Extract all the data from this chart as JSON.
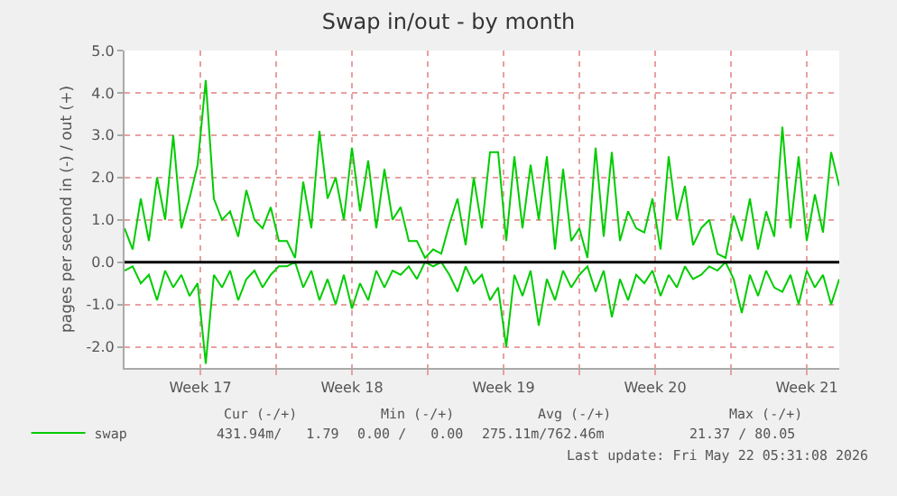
{
  "chart_data": {
    "type": "line",
    "title": "Swap in/out - by month",
    "ylabel": "pages per second in (-) / out (+)",
    "x": [
      "2026-04-20T00:00",
      "2026-04-20T09:00",
      "2026-04-20T18:00",
      "2026-04-21T03:00",
      "2026-04-21T12:00",
      "2026-04-21T21:00",
      "2026-04-22T06:00",
      "2026-04-22T15:00",
      "2026-04-23T00:00",
      "2026-04-23T09:00",
      "2026-04-23T18:00",
      "2026-04-24T03:00",
      "2026-04-24T12:00",
      "2026-04-24T21:00",
      "2026-04-25T06:00",
      "2026-04-25T15:00",
      "2026-04-26T00:00",
      "2026-04-26T09:00",
      "2026-04-26T18:00",
      "2026-04-27T03:00",
      "2026-04-27T12:00",
      "2026-04-27T21:00",
      "2026-04-28T06:00",
      "2026-04-28T15:00",
      "2026-04-29T00:00",
      "2026-04-29T09:00",
      "2026-04-29T18:00",
      "2026-04-30T03:00",
      "2026-04-30T12:00",
      "2026-04-30T21:00",
      "2026-05-01T06:00",
      "2026-05-01T15:00",
      "2026-05-02T00:00",
      "2026-05-02T09:00",
      "2026-05-02T18:00",
      "2026-05-03T03:00",
      "2026-05-03T12:00",
      "2026-05-03T21:00",
      "2026-05-04T06:00",
      "2026-05-04T15:00",
      "2026-05-05T00:00",
      "2026-05-05T09:00",
      "2026-05-05T18:00",
      "2026-05-06T03:00",
      "2026-05-06T12:00",
      "2026-05-06T21:00",
      "2026-05-07T06:00",
      "2026-05-07T15:00",
      "2026-05-08T00:00",
      "2026-05-08T09:00",
      "2026-05-08T18:00",
      "2026-05-09T03:00",
      "2026-05-09T12:00",
      "2026-05-09T21:00",
      "2026-05-10T06:00",
      "2026-05-10T15:00",
      "2026-05-11T00:00",
      "2026-05-11T09:00",
      "2026-05-11T18:00",
      "2026-05-12T03:00",
      "2026-05-12T12:00",
      "2026-05-12T21:00",
      "2026-05-13T06:00",
      "2026-05-13T15:00",
      "2026-05-14T00:00",
      "2026-05-14T09:00",
      "2026-05-14T18:00",
      "2026-05-15T03:00",
      "2026-05-15T12:00",
      "2026-05-15T21:00",
      "2026-05-16T06:00",
      "2026-05-16T15:00",
      "2026-05-17T00:00",
      "2026-05-17T09:00",
      "2026-05-17T18:00",
      "2026-05-18T03:00",
      "2026-05-18T12:00",
      "2026-05-18T21:00",
      "2026-05-19T06:00",
      "2026-05-19T15:00",
      "2026-05-20T00:00",
      "2026-05-20T09:00",
      "2026-05-20T18:00",
      "2026-05-21T03:00",
      "2026-05-21T12:00",
      "2026-05-21T21:00",
      "2026-05-22T06:00",
      "2026-05-22T15:00",
      "2026-05-23T00:00"
    ],
    "series": [
      {
        "name": "swap",
        "color": "#00cc00",
        "values": [
          -0.2,
          -0.1,
          -0.5,
          -0.3,
          -0.9,
          -0.2,
          -0.6,
          -0.3,
          -0.8,
          -0.5,
          -2.4,
          -0.3,
          -0.6,
          -0.2,
          -0.9,
          -0.4,
          -0.2,
          -0.6,
          -0.3,
          -0.1,
          -0.1,
          0,
          -0.6,
          -0.2,
          -0.9,
          -0.4,
          -1.0,
          -0.3,
          -1.1,
          -0.5,
          -0.9,
          -0.2,
          -0.6,
          -0.2,
          -0.3,
          -0.1,
          -0.4,
          0,
          -0.1,
          0,
          -0.3,
          -0.7,
          -0.1,
          -0.5,
          -0.3,
          -0.9,
          -0.6,
          -2.0,
          -0.3,
          -0.8,
          -0.2,
          -1.5,
          -0.4,
          -0.9,
          -0.2,
          -0.6,
          -0.3,
          -0.1,
          -0.7,
          -0.2,
          -1.3,
          -0.4,
          -0.9,
          -0.3,
          -0.5,
          -0.2,
          -0.8,
          -0.3,
          -0.6,
          -0.1,
          -0.4,
          -0.3,
          -0.1,
          -0.2,
          0,
          -0.4,
          -1.2,
          -0.3,
          -0.8,
          -0.2,
          -0.6,
          -0.7,
          -0.3,
          -1.0,
          -0.2,
          -0.6,
          -0.3,
          -1.0,
          -0.4
        ]
      },
      {
        "color": "#00cc00",
        "values": [
          0.8,
          0.3,
          1.5,
          0.5,
          2.0,
          1.0,
          3.0,
          0.8,
          1.5,
          2.3,
          4.3,
          1.5,
          1.0,
          1.2,
          0.6,
          1.7,
          1.0,
          0.8,
          1.3,
          0.5,
          0.5,
          0.1,
          1.9,
          0.8,
          3.1,
          1.5,
          2.0,
          1.0,
          2.7,
          1.2,
          2.4,
          0.8,
          2.2,
          1.0,
          1.3,
          0.5,
          0.5,
          0.1,
          0.3,
          0.2,
          0.9,
          1.5,
          0.4,
          2.0,
          0.8,
          2.6,
          2.6,
          0.5,
          2.5,
          0.8,
          2.3,
          1.0,
          2.5,
          0.3,
          2.2,
          0.5,
          0.8,
          0.1,
          2.7,
          0.6,
          2.6,
          0.5,
          1.2,
          0.8,
          0.7,
          1.5,
          0.3,
          2.5,
          1.0,
          1.8,
          0.4,
          0.8,
          1.0,
          0.2,
          0.1,
          1.1,
          0.5,
          1.5,
          0.3,
          1.2,
          0.6,
          3.2,
          0.8,
          2.5,
          0.5,
          1.6,
          0.7,
          2.6,
          1.8
        ]
      }
    ],
    "xlim": [
      "2026-04-20",
      "2026-05-23"
    ],
    "xticks": [
      {
        "value": "2026-04-23T12:00",
        "label": "Week 17"
      },
      {
        "value": "2026-04-27",
        "label": null
      },
      {
        "value": "2026-04-30T12:00",
        "label": "Week 18"
      },
      {
        "value": "2026-05-04",
        "label": null
      },
      {
        "value": "2026-05-07T12:00",
        "label": "Week 19"
      },
      {
        "value": "2026-05-11",
        "label": null
      },
      {
        "value": "2026-05-14T12:00",
        "label": "Week 20"
      },
      {
        "value": "2026-05-18",
        "label": null
      },
      {
        "value": "2026-05-21T12:00",
        "label": "Week 21"
      }
    ],
    "ylim": [
      -2.5,
      5.0
    ],
    "yticks": [
      {
        "value": -2,
        "label": "-2.0"
      },
      {
        "value": -1,
        "label": "-1.0"
      },
      {
        "value": 0,
        "label": "0.0"
      },
      {
        "value": 1,
        "label": "1.0"
      },
      {
        "value": 2,
        "label": "2.0"
      },
      {
        "value": 3,
        "label": "3.0"
      },
      {
        "value": 4,
        "label": "4.0"
      },
      {
        "value": 5,
        "label": "5.0"
      }
    ],
    "ref_lines": [
      {
        "axis": "y",
        "value": 0,
        "color": "#000000"
      }
    ],
    "grid": true,
    "legend": "bottom left",
    "marker": "none",
    "line_style": "solid",
    "annotations": [
      "Cur (-/+)",
      "Min (-/+)",
      "Avg (-/+)",
      "Max (-/+)",
      "431.94m/   1.79",
      "0.00 /   0.00",
      "275.11m/762.46m",
      "21.37 / 80.05",
      "Last update: Fri May 22 05:31:08 2026"
    ]
  }
}
